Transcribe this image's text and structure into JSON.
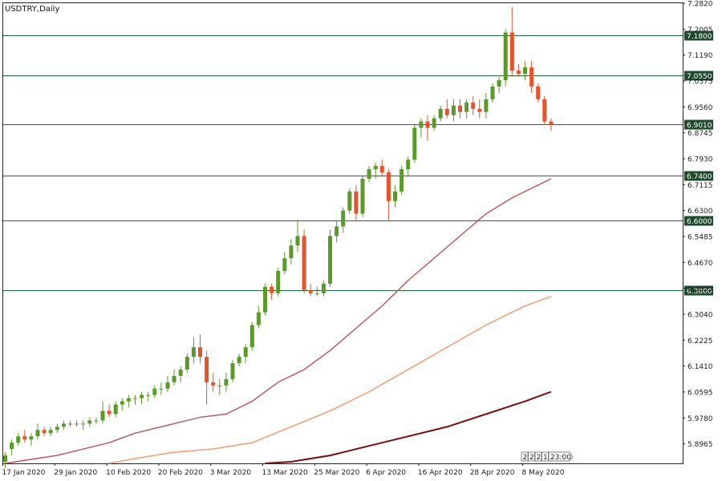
{
  "chart_title": "USDTRY,Daily",
  "colors": {
    "bull": "#5b9a2a",
    "bear": "#e8532a",
    "level_line": "#1e6b3a",
    "level_label_bg": "#1f4a2e",
    "ma_fast": "#c0505a",
    "ma_mid": "#f4a07a",
    "ma_slow": "#7a0d0d",
    "axis": "#222222"
  },
  "timer": {
    "digits": [
      "2",
      "2",
      "2",
      "1"
    ],
    "digit_colors": [
      "#222222",
      "#e8532a",
      "#222222",
      "#222222"
    ],
    "time": "23:00"
  },
  "chart_data": {
    "type": "candlestick",
    "title": "USDTRY,Daily",
    "x_tick_labels": [
      "17 Jan 2020",
      "29 Jan 2020",
      "10 Feb 2020",
      "20 Feb 2020",
      "3 Mar 2020",
      "13 Mar 2020",
      "25 Mar 2020",
      "6 Apr 2020",
      "16 Apr 2020",
      "28 Apr 2020",
      "8 May 2020"
    ],
    "x_tick_bar_index": [
      0,
      8,
      16,
      24,
      32,
      40,
      48,
      56,
      64,
      72,
      80
    ],
    "y_tick_labels": [
      "7.2820",
      "7.2005",
      "7.1190",
      "7.0375",
      "6.9560",
      "6.8745",
      "6.7930",
      "6.7115",
      "6.6300",
      "6.5485",
      "6.4670",
      "6.3855",
      "6.3040",
      "6.2225",
      "6.1410",
      "6.0595",
      "5.9780",
      "5.8965"
    ],
    "ylim": [
      5.835,
      7.282
    ],
    "levels": [
      "7.1800",
      "7.0550",
      "6.9010",
      "6.7400",
      "6.6000",
      "6.3800"
    ],
    "series": {
      "ohlc": [
        [
          5.84,
          5.87,
          5.82,
          5.86
        ],
        [
          5.88,
          5.91,
          5.86,
          5.9
        ],
        [
          5.9,
          5.93,
          5.89,
          5.92
        ],
        [
          5.92,
          5.94,
          5.9,
          5.91
        ],
        [
          5.91,
          5.93,
          5.89,
          5.92
        ],
        [
          5.92,
          5.96,
          5.91,
          5.94
        ],
        [
          5.94,
          5.95,
          5.92,
          5.93
        ],
        [
          5.93,
          5.95,
          5.92,
          5.94
        ],
        [
          5.94,
          5.96,
          5.93,
          5.95
        ],
        [
          5.95,
          5.97,
          5.94,
          5.96
        ],
        [
          5.96,
          5.97,
          5.95,
          5.96
        ],
        [
          5.96,
          5.97,
          5.95,
          5.96
        ],
        [
          5.96,
          5.97,
          5.94,
          5.96
        ],
        [
          5.96,
          5.98,
          5.95,
          5.97
        ],
        [
          5.97,
          5.98,
          5.96,
          5.97
        ],
        [
          5.97,
          6.03,
          5.96,
          6.0
        ],
        [
          6.0,
          6.02,
          5.98,
          5.99
        ],
        [
          5.99,
          6.03,
          5.98,
          6.02
        ],
        [
          6.02,
          6.04,
          6.0,
          6.03
        ],
        [
          6.03,
          6.05,
          6.01,
          6.04
        ],
        [
          6.04,
          6.05,
          6.02,
          6.04
        ],
        [
          6.04,
          6.06,
          6.02,
          6.05
        ],
        [
          6.05,
          6.06,
          6.03,
          6.05
        ],
        [
          6.05,
          6.08,
          6.04,
          6.07
        ],
        [
          6.07,
          6.09,
          6.05,
          6.07
        ],
        [
          6.07,
          6.11,
          6.06,
          6.09
        ],
        [
          6.09,
          6.13,
          6.08,
          6.11
        ],
        [
          6.11,
          6.14,
          6.09,
          6.13
        ],
        [
          6.13,
          6.18,
          6.12,
          6.17
        ],
        [
          6.17,
          6.23,
          6.15,
          6.2
        ],
        [
          6.2,
          6.24,
          6.15,
          6.17
        ],
        [
          6.17,
          6.19,
          6.02,
          6.09
        ],
        [
          6.09,
          6.12,
          6.06,
          6.08
        ],
        [
          6.08,
          6.1,
          6.05,
          6.08
        ],
        [
          6.08,
          6.12,
          6.06,
          6.1
        ],
        [
          6.1,
          6.16,
          6.09,
          6.15
        ],
        [
          6.15,
          6.18,
          6.14,
          6.17
        ],
        [
          6.17,
          6.21,
          6.15,
          6.2
        ],
        [
          6.2,
          6.28,
          6.19,
          6.27
        ],
        [
          6.27,
          6.33,
          6.26,
          6.31
        ],
        [
          6.31,
          6.4,
          6.3,
          6.39
        ],
        [
          6.39,
          6.4,
          6.35,
          6.37
        ],
        [
          6.37,
          6.45,
          6.36,
          6.44
        ],
        [
          6.44,
          6.5,
          6.43,
          6.48
        ],
        [
          6.48,
          6.54,
          6.46,
          6.52
        ],
        [
          6.52,
          6.6,
          6.5,
          6.55
        ],
        [
          6.55,
          6.57,
          6.37,
          6.38
        ],
        [
          6.38,
          6.4,
          6.36,
          6.37
        ],
        [
          6.37,
          6.39,
          6.36,
          6.37
        ],
        [
          6.37,
          6.41,
          6.36,
          6.4
        ],
        [
          6.4,
          6.57,
          6.39,
          6.55
        ],
        [
          6.55,
          6.6,
          6.53,
          6.58
        ],
        [
          6.58,
          6.64,
          6.56,
          6.63
        ],
        [
          6.63,
          6.7,
          6.62,
          6.69
        ],
        [
          6.69,
          6.71,
          6.6,
          6.62
        ],
        [
          6.62,
          6.74,
          6.61,
          6.73
        ],
        [
          6.73,
          6.77,
          6.72,
          6.76
        ],
        [
          6.76,
          6.78,
          6.73,
          6.77
        ],
        [
          6.77,
          6.79,
          6.74,
          6.75
        ],
        [
          6.75,
          6.76,
          6.6,
          6.66
        ],
        [
          6.66,
          6.71,
          6.64,
          6.69
        ],
        [
          6.69,
          6.77,
          6.68,
          6.76
        ],
        [
          6.76,
          6.8,
          6.74,
          6.79
        ],
        [
          6.79,
          6.9,
          6.78,
          6.89
        ],
        [
          6.89,
          6.92,
          6.86,
          6.91
        ],
        [
          6.91,
          6.93,
          6.85,
          6.89
        ],
        [
          6.89,
          6.93,
          6.88,
          6.92
        ],
        [
          6.92,
          6.96,
          6.91,
          6.95
        ],
        [
          6.95,
          6.98,
          6.92,
          6.93
        ],
        [
          6.93,
          6.98,
          6.91,
          6.96
        ],
        [
          6.96,
          6.98,
          6.92,
          6.94
        ],
        [
          6.94,
          6.98,
          6.92,
          6.97
        ],
        [
          6.97,
          6.99,
          6.93,
          6.95
        ],
        [
          6.95,
          6.98,
          6.92,
          6.94
        ],
        [
          6.94,
          7.0,
          6.92,
          6.98
        ],
        [
          6.98,
          7.03,
          6.97,
          7.02
        ],
        [
          7.02,
          7.05,
          7.0,
          7.04
        ],
        [
          7.04,
          7.2,
          7.02,
          7.19
        ],
        [
          7.19,
          7.27,
          7.05,
          7.07
        ],
        [
          7.07,
          7.09,
          7.05,
          7.06
        ],
        [
          7.06,
          7.1,
          7.04,
          7.08
        ],
        [
          7.08,
          7.1,
          7.0,
          7.02
        ],
        [
          7.02,
          7.03,
          6.97,
          6.98
        ],
        [
          6.98,
          6.99,
          6.9,
          6.91
        ],
        [
          6.91,
          6.92,
          6.88,
          6.9
        ]
      ],
      "ma_fast": [
        [
          0,
          5.835
        ],
        [
          8,
          5.86
        ],
        [
          16,
          5.9
        ],
        [
          20,
          5.93
        ],
        [
          26,
          5.96
        ],
        [
          30,
          5.98
        ],
        [
          34,
          5.99
        ],
        [
          38,
          6.03
        ],
        [
          42,
          6.09
        ],
        [
          46,
          6.13
        ],
        [
          50,
          6.19
        ],
        [
          54,
          6.26
        ],
        [
          58,
          6.33
        ],
        [
          62,
          6.41
        ],
        [
          66,
          6.48
        ],
        [
          70,
          6.55
        ],
        [
          74,
          6.62
        ],
        [
          78,
          6.67
        ],
        [
          84,
          6.73
        ]
      ],
      "ma_mid": [
        [
          16,
          5.835
        ],
        [
          20,
          5.85
        ],
        [
          26,
          5.87
        ],
        [
          32,
          5.88
        ],
        [
          38,
          5.9
        ],
        [
          44,
          5.95
        ],
        [
          50,
          6.0
        ],
        [
          56,
          6.06
        ],
        [
          62,
          6.13
        ],
        [
          68,
          6.2
        ],
        [
          74,
          6.27
        ],
        [
          80,
          6.33
        ],
        [
          84,
          6.36
        ]
      ],
      "ma_slow": [
        [
          40,
          5.835
        ],
        [
          44,
          5.84
        ],
        [
          50,
          5.86
        ],
        [
          56,
          5.89
        ],
        [
          62,
          5.92
        ],
        [
          68,
          5.95
        ],
        [
          74,
          5.99
        ],
        [
          80,
          6.03
        ],
        [
          84,
          6.06
        ]
      ]
    }
  }
}
